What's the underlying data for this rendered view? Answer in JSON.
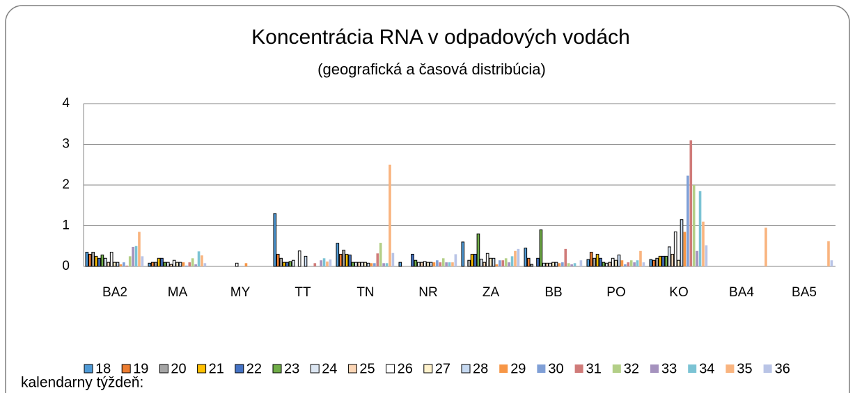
{
  "chart_data": {
    "type": "bar",
    "title": "Koncentrácia RNA v odpadových vodách",
    "subtitle": "(geografická a časová distribúcia)",
    "legend_title": "kalendarny týždeň:",
    "categories": [
      "BA2",
      "MA",
      "MY",
      "TT",
      "TN",
      "NR",
      "ZA",
      "BB",
      "PO",
      "KO",
      "BA4",
      "BA5"
    ],
    "ylim": [
      0,
      4
    ],
    "yticks": [
      0,
      1,
      2,
      3,
      4
    ],
    "grid": true,
    "legend": "bottom",
    "series": [
      {
        "name": "18",
        "color": "#4f9ad6",
        "edgecolor": "#000000",
        "values": [
          0.35,
          0.08,
          0,
          1.3,
          0.57,
          0.1,
          0.6,
          0.45,
          0.17,
          0.17,
          0,
          0
        ]
      },
      {
        "name": "19",
        "color": "#ed7d31",
        "edgecolor": "#000000",
        "values": [
          0.3,
          0.1,
          0,
          0.3,
          0.3,
          0,
          0,
          0.2,
          0.35,
          0.15,
          0,
          0
        ]
      },
      {
        "name": "20",
        "color": "#a5a5a5",
        "edgecolor": "#000000",
        "values": [
          0.35,
          0.1,
          0,
          0.2,
          0.4,
          0,
          0.15,
          0.05,
          0.2,
          0.2,
          0,
          0
        ]
      },
      {
        "name": "21",
        "color": "#ffc000",
        "edgecolor": "#000000",
        "values": [
          0.25,
          0.2,
          0,
          0.1,
          0.3,
          0,
          0.3,
          0,
          0.3,
          0.25,
          0,
          0
        ]
      },
      {
        "name": "22",
        "color": "#4472c4",
        "edgecolor": "#000000",
        "values": [
          0.2,
          0.2,
          0,
          0.1,
          0.28,
          0.3,
          0.3,
          0.2,
          0.2,
          0.25,
          0,
          0
        ]
      },
      {
        "name": "23",
        "color": "#70ad47",
        "edgecolor": "#000000",
        "values": [
          0.28,
          0.1,
          0,
          0.12,
          0.1,
          0.15,
          0.8,
          0.9,
          0.1,
          0.25,
          0,
          0
        ]
      },
      {
        "name": "24",
        "color": "#dce6f2",
        "edgecolor": "#000000",
        "values": [
          0.2,
          0.1,
          0,
          0.15,
          0.1,
          0.1,
          0.18,
          0.08,
          0.08,
          0.48,
          0,
          0
        ]
      },
      {
        "name": "25",
        "color": "#fbd5b5",
        "edgecolor": "#000000",
        "values": [
          0.1,
          0.05,
          0,
          0,
          0.1,
          0.1,
          0.1,
          0.08,
          0.1,
          0.3,
          0,
          0
        ]
      },
      {
        "name": "26",
        "color": "#ffffff",
        "edgecolor": "#000000",
        "values": [
          0.35,
          0.15,
          0.08,
          0.38,
          0.1,
          0.12,
          0.32,
          0.08,
          0.2,
          0.85,
          0,
          0
        ]
      },
      {
        "name": "27",
        "color": "#fff2cc",
        "edgecolor": "#000000",
        "values": [
          0.1,
          0.1,
          0,
          0,
          0.1,
          0.1,
          0.2,
          0.1,
          0.15,
          0.15,
          0,
          0
        ]
      },
      {
        "name": "28",
        "color": "#c6d9f1",
        "edgecolor": "#000000",
        "values": [
          0.1,
          0.1,
          0,
          0.25,
          0.08,
          0.1,
          0.2,
          0.1,
          0.28,
          1.15,
          0,
          0
        ]
      },
      {
        "name": "29",
        "color": "#f79646",
        "values": [
          0.05,
          0.1,
          0.08,
          0,
          0.08,
          0.1,
          0.05,
          0.08,
          0.15,
          0.85,
          0,
          0
        ]
      },
      {
        "name": "30",
        "color": "#7f9fd6",
        "values": [
          0.1,
          0.02,
          0,
          0,
          0.08,
          0.15,
          0.15,
          0.1,
          0.05,
          2.23,
          0,
          0
        ]
      },
      {
        "name": "31",
        "color": "#d07b79",
        "values": [
          0.02,
          0.1,
          0,
          0.08,
          0.32,
          0.1,
          0.15,
          0.43,
          0.1,
          3.1,
          0,
          0
        ]
      },
      {
        "name": "32",
        "color": "#b3cf87",
        "values": [
          0.25,
          0.2,
          0,
          0,
          0.58,
          0.2,
          0.2,
          0.08,
          0.15,
          2.0,
          0,
          0
        ]
      },
      {
        "name": "33",
        "color": "#a592be",
        "values": [
          0.48,
          0.05,
          0,
          0.15,
          0.08,
          0.1,
          0.1,
          0.05,
          0.1,
          0.38,
          0,
          0
        ]
      },
      {
        "name": "34",
        "color": "#7bc3d4",
        "values": [
          0.5,
          0.37,
          0,
          0.2,
          0.08,
          0.1,
          0.25,
          0.08,
          0.15,
          1.85,
          0,
          0
        ]
      },
      {
        "name": "35",
        "color": "#f9b47f",
        "values": [
          0.85,
          0.27,
          0,
          0.12,
          2.5,
          0.1,
          0.38,
          0,
          0.38,
          1.1,
          0.95,
          0.62
        ]
      },
      {
        "name": "36",
        "color": "#b9c4e6",
        "values": [
          0.25,
          0.08,
          0,
          0.17,
          0.33,
          0.3,
          0.43,
          0.15,
          0.1,
          0.52,
          0,
          0.15
        ]
      }
    ]
  }
}
